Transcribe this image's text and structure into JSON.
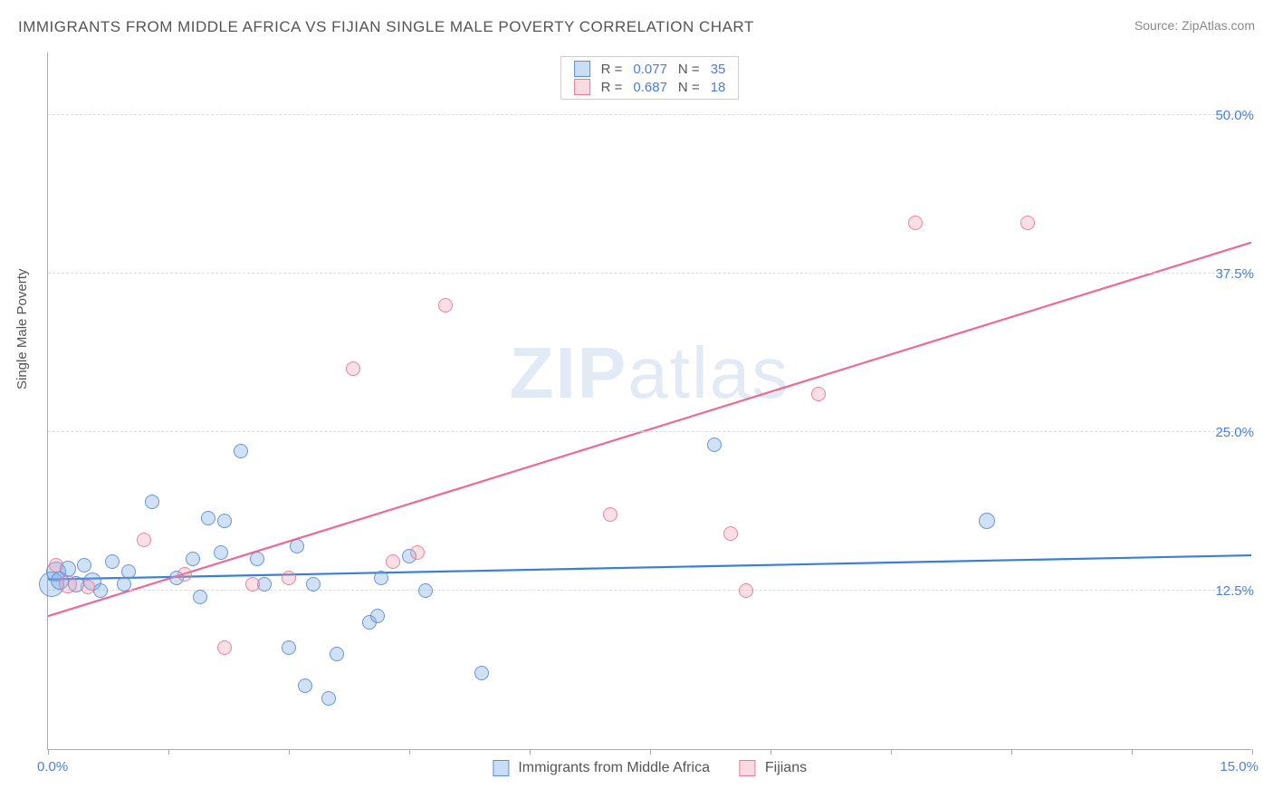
{
  "title": "IMMIGRANTS FROM MIDDLE AFRICA VS FIJIAN SINGLE MALE POVERTY CORRELATION CHART",
  "source_prefix": "Source: ",
  "source_name": "ZipAtlas.com",
  "ylabel": "Single Male Poverty",
  "watermark_bold": "ZIP",
  "watermark_rest": "atlas",
  "chart": {
    "xlim": [
      0,
      15
    ],
    "ylim": [
      0,
      55
    ],
    "xtick_positions": [
      0,
      1.5,
      3.0,
      4.5,
      6.0,
      7.5,
      9.0,
      10.5,
      12.0,
      13.5,
      15.0
    ],
    "xtick_label_left": "0.0%",
    "xtick_label_right": "15.0%",
    "ytick_positions": [
      12.5,
      25.0,
      37.5,
      50.0
    ],
    "ytick_labels": [
      "12.5%",
      "25.0%",
      "37.5%",
      "50.0%"
    ],
    "grid_color": "#dddddd",
    "axis_color": "#aaaaaa",
    "background_color": "#ffffff",
    "tick_label_color": "#4a7fd6",
    "text_color": "#555555"
  },
  "series": [
    {
      "key": "blue",
      "name": "Immigrants from Middle Africa",
      "R_label": "R =",
      "R": "0.077",
      "N_label": "N =",
      "N": "35",
      "color_fill": "rgba(120,170,230,0.35)",
      "color_stroke": "#5a8fd6",
      "line_color": "#3a7fd6",
      "line": {
        "x1": 0,
        "y1": 13.4,
        "x2": 15,
        "y2": 15.3
      },
      "points": [
        {
          "x": 0.05,
          "y": 13.0,
          "r": 14
        },
        {
          "x": 0.1,
          "y": 14.0,
          "r": 11
        },
        {
          "x": 0.15,
          "y": 13.3,
          "r": 10
        },
        {
          "x": 0.25,
          "y": 14.2,
          "r": 9
        },
        {
          "x": 0.35,
          "y": 13.0,
          "r": 9
        },
        {
          "x": 0.45,
          "y": 14.5,
          "r": 8
        },
        {
          "x": 0.55,
          "y": 13.2,
          "r": 10
        },
        {
          "x": 0.65,
          "y": 12.5,
          "r": 8
        },
        {
          "x": 0.8,
          "y": 14.8,
          "r": 8
        },
        {
          "x": 0.95,
          "y": 13.0,
          "r": 8
        },
        {
          "x": 1.0,
          "y": 14.0,
          "r": 8
        },
        {
          "x": 1.3,
          "y": 19.5,
          "r": 8
        },
        {
          "x": 1.6,
          "y": 13.5,
          "r": 8
        },
        {
          "x": 1.8,
          "y": 15.0,
          "r": 8
        },
        {
          "x": 1.9,
          "y": 12.0,
          "r": 8
        },
        {
          "x": 2.0,
          "y": 18.2,
          "r": 8
        },
        {
          "x": 2.15,
          "y": 15.5,
          "r": 8
        },
        {
          "x": 2.2,
          "y": 18.0,
          "r": 8
        },
        {
          "x": 2.4,
          "y": 23.5,
          "r": 8
        },
        {
          "x": 2.6,
          "y": 15.0,
          "r": 8
        },
        {
          "x": 2.7,
          "y": 13.0,
          "r": 8
        },
        {
          "x": 3.0,
          "y": 8.0,
          "r": 8
        },
        {
          "x": 3.1,
          "y": 16.0,
          "r": 8
        },
        {
          "x": 3.2,
          "y": 5.0,
          "r": 8
        },
        {
          "x": 3.3,
          "y": 13.0,
          "r": 8
        },
        {
          "x": 3.5,
          "y": 4.0,
          "r": 8
        },
        {
          "x": 3.6,
          "y": 7.5,
          "r": 8
        },
        {
          "x": 4.0,
          "y": 10.0,
          "r": 8
        },
        {
          "x": 4.1,
          "y": 10.5,
          "r": 8
        },
        {
          "x": 4.15,
          "y": 13.5,
          "r": 8
        },
        {
          "x": 4.5,
          "y": 15.2,
          "r": 8
        },
        {
          "x": 4.7,
          "y": 12.5,
          "r": 8
        },
        {
          "x": 5.4,
          "y": 6.0,
          "r": 8
        },
        {
          "x": 8.3,
          "y": 24.0,
          "r": 8
        },
        {
          "x": 11.7,
          "y": 18.0,
          "r": 9
        }
      ]
    },
    {
      "key": "pink",
      "name": "Fijians",
      "R_label": "R =",
      "R": "0.687",
      "N_label": "N =",
      "N": "18",
      "color_fill": "rgba(240,150,170,0.3)",
      "color_stroke": "#e67a9a",
      "line_color": "#ec6a93",
      "line": {
        "x1": 0,
        "y1": 10.5,
        "x2": 15,
        "y2": 40.0
      },
      "points": [
        {
          "x": 0.1,
          "y": 14.5,
          "r": 8
        },
        {
          "x": 0.25,
          "y": 13.0,
          "r": 10
        },
        {
          "x": 0.5,
          "y": 12.8,
          "r": 8
        },
        {
          "x": 1.2,
          "y": 16.5,
          "r": 8
        },
        {
          "x": 1.7,
          "y": 13.8,
          "r": 8
        },
        {
          "x": 2.2,
          "y": 8.0,
          "r": 8
        },
        {
          "x": 2.55,
          "y": 13.0,
          "r": 8
        },
        {
          "x": 3.0,
          "y": 13.5,
          "r": 8
        },
        {
          "x": 3.8,
          "y": 30.0,
          "r": 8
        },
        {
          "x": 4.3,
          "y": 14.8,
          "r": 8
        },
        {
          "x": 4.6,
          "y": 15.5,
          "r": 8
        },
        {
          "x": 4.95,
          "y": 35.0,
          "r": 8
        },
        {
          "x": 7.0,
          "y": 18.5,
          "r": 8
        },
        {
          "x": 8.5,
          "y": 17.0,
          "r": 8
        },
        {
          "x": 8.7,
          "y": 12.5,
          "r": 8
        },
        {
          "x": 9.6,
          "y": 28.0,
          "r": 8
        },
        {
          "x": 10.8,
          "y": 41.5,
          "r": 8
        },
        {
          "x": 12.2,
          "y": 41.5,
          "r": 8
        }
      ]
    }
  ]
}
